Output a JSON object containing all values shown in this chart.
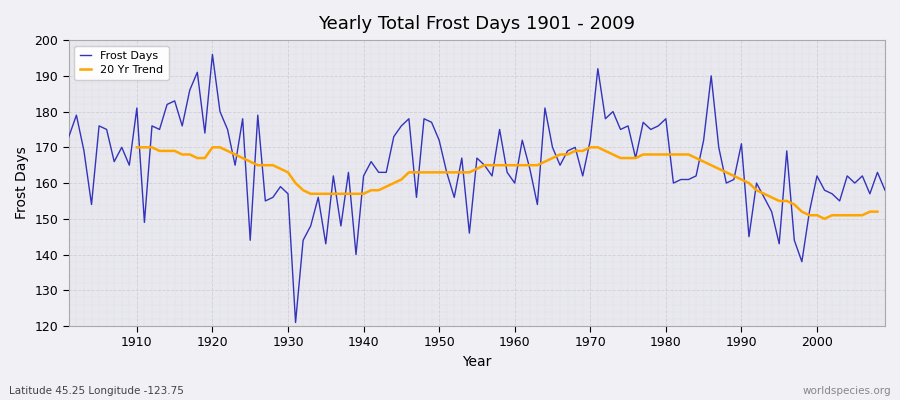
{
  "title": "Yearly Total Frost Days 1901 - 2009",
  "xlabel": "Year",
  "ylabel": "Frost Days",
  "subtitle": "Latitude 45.25 Longitude -123.75",
  "watermark": "worldspecies.org",
  "line_color": "#3333bb",
  "trend_color": "#ffa500",
  "bg_color": "#f0f0f5",
  "plot_bg_color": "#e8e8ee",
  "grid_color": "#d0d0d8",
  "ylim": [
    120,
    200
  ],
  "xlim": [
    1901,
    2009
  ],
  "years": [
    1901,
    1902,
    1903,
    1904,
    1905,
    1906,
    1907,
    1908,
    1909,
    1910,
    1911,
    1912,
    1913,
    1914,
    1915,
    1916,
    1917,
    1918,
    1919,
    1920,
    1921,
    1922,
    1923,
    1924,
    1925,
    1926,
    1927,
    1928,
    1929,
    1930,
    1931,
    1932,
    1933,
    1934,
    1935,
    1936,
    1937,
    1938,
    1939,
    1940,
    1941,
    1942,
    1943,
    1944,
    1945,
    1946,
    1947,
    1948,
    1949,
    1950,
    1951,
    1952,
    1953,
    1954,
    1955,
    1956,
    1957,
    1958,
    1959,
    1960,
    1961,
    1962,
    1963,
    1964,
    1965,
    1966,
    1967,
    1968,
    1969,
    1970,
    1971,
    1972,
    1973,
    1974,
    1975,
    1976,
    1977,
    1978,
    1979,
    1980,
    1981,
    1982,
    1983,
    1984,
    1985,
    1986,
    1987,
    1988,
    1989,
    1990,
    1991,
    1992,
    1993,
    1994,
    1995,
    1996,
    1997,
    1998,
    1999,
    2000,
    2001,
    2002,
    2003,
    2004,
    2005,
    2006,
    2007,
    2008,
    2009
  ],
  "frost_days": [
    173,
    179,
    169,
    154,
    176,
    175,
    166,
    170,
    165,
    181,
    149,
    176,
    175,
    182,
    183,
    176,
    186,
    191,
    174,
    196,
    180,
    175,
    165,
    178,
    144,
    179,
    155,
    156,
    159,
    157,
    121,
    144,
    148,
    156,
    143,
    162,
    148,
    163,
    140,
    162,
    166,
    163,
    163,
    173,
    176,
    178,
    156,
    178,
    177,
    172,
    163,
    156,
    167,
    146,
    167,
    165,
    162,
    175,
    163,
    160,
    172,
    164,
    154,
    181,
    170,
    165,
    169,
    170,
    162,
    172,
    192,
    178,
    180,
    175,
    176,
    167,
    177,
    175,
    176,
    178,
    160,
    161,
    161,
    162,
    172,
    190,
    170,
    160,
    161,
    171,
    145,
    160,
    156,
    152,
    143,
    169,
    144,
    138,
    152,
    162,
    158,
    157,
    155,
    162,
    160,
    162,
    157,
    163,
    158
  ],
  "trend": [
    null,
    null,
    null,
    null,
    null,
    null,
    null,
    null,
    null,
    170,
    170,
    170,
    169,
    169,
    169,
    168,
    168,
    167,
    167,
    170,
    170,
    169,
    168,
    167,
    166,
    165,
    165,
    165,
    164,
    163,
    160,
    158,
    157,
    157,
    157,
    157,
    157,
    157,
    157,
    157,
    158,
    158,
    159,
    160,
    161,
    163,
    163,
    163,
    163,
    163,
    163,
    163,
    163,
    163,
    164,
    165,
    165,
    165,
    165,
    165,
    165,
    165,
    165,
    166,
    167,
    168,
    168,
    169,
    169,
    170,
    170,
    169,
    168,
    167,
    167,
    167,
    168,
    168,
    168,
    168,
    168,
    168,
    168,
    167,
    166,
    165,
    164,
    163,
    162,
    161,
    160,
    158,
    157,
    156,
    155,
    155,
    154,
    152,
    151,
    151,
    150,
    151,
    151,
    151,
    151,
    151,
    152,
    152,
    null
  ]
}
